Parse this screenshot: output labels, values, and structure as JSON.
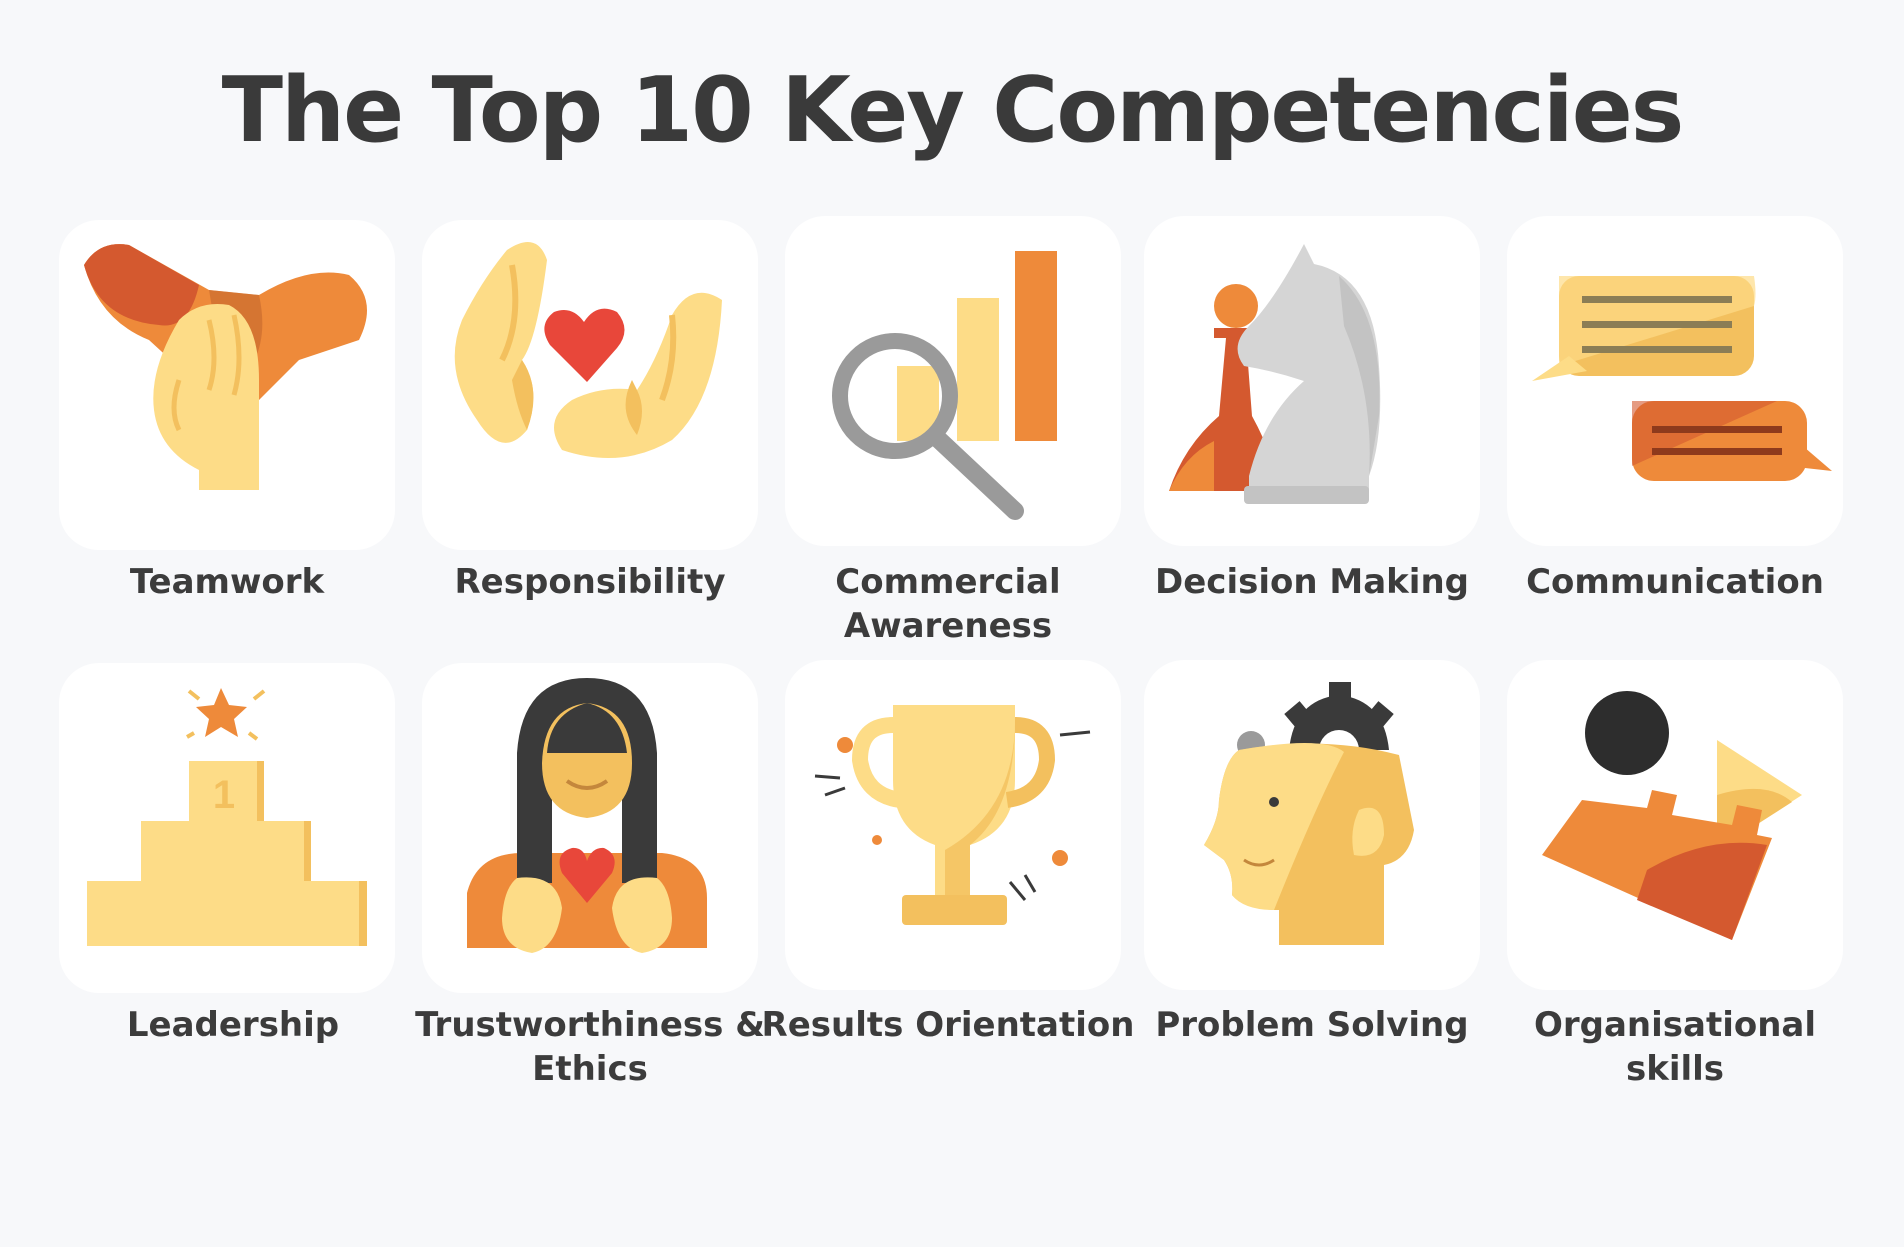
{
  "title": "The Top 10 Key Competencies",
  "competencies": [
    {
      "label": "Teamwork",
      "icon": "stacked-hands-icon"
    },
    {
      "label": "Responsibility",
      "icon": "hands-holding-heart-icon"
    },
    {
      "label": "Commercial Awareness",
      "icon": "magnifier-bar-chart-icon"
    },
    {
      "label": "Decision Making",
      "icon": "chess-pieces-icon"
    },
    {
      "label": "Communication",
      "icon": "speech-bubbles-icon"
    },
    {
      "label": "Leadership",
      "icon": "podium-star-icon"
    },
    {
      "label": "Trustworthiness & Ethics",
      "icon": "person-holding-heart-icon"
    },
    {
      "label": "Results Orientation",
      "icon": "trophy-icon"
    },
    {
      "label": "Problem Solving",
      "icon": "head-with-gears-icon"
    },
    {
      "label": "Organisational skills",
      "icon": "arranged-shapes-icon"
    }
  ],
  "colors": {
    "background": "#f7f8fa",
    "card": "#ffffff",
    "yellow": "#fddc87",
    "gold": "#f3c05e",
    "orange": "#ee8a3a",
    "rust": "#d4592f",
    "gray": "#9a9a9a",
    "text": "#3c3c3c"
  }
}
